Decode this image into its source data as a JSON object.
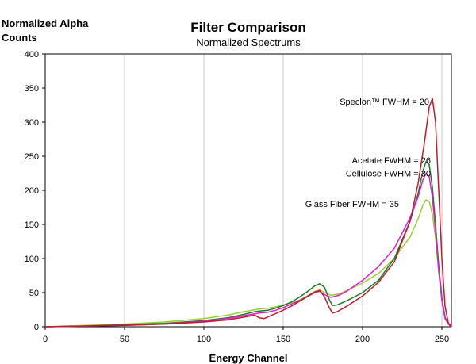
{
  "chart_data": {
    "type": "line",
    "title": "Filter Comparison",
    "subtitle": "Normalized Spectrums",
    "xlabel": "Energy Channel",
    "ylabel_line1": "Normalized Alpha",
    "ylabel_line2": "Counts",
    "xlim": [
      0,
      256
    ],
    "ylim": [
      0,
      400
    ],
    "x_ticks": [
      0,
      50,
      100,
      150,
      200,
      250
    ],
    "y_ticks": [
      0,
      50,
      100,
      150,
      200,
      250,
      300,
      350,
      400
    ],
    "grid": "vertical",
    "series": [
      {
        "color": "#9acd32",
        "points": [
          [
            0,
            0
          ],
          [
            25,
            2
          ],
          [
            50,
            4
          ],
          [
            75,
            7
          ],
          [
            100,
            12
          ],
          [
            115,
            17
          ],
          [
            125,
            22
          ],
          [
            135,
            26
          ],
          [
            140,
            27
          ],
          [
            145,
            29
          ],
          [
            150,
            32
          ],
          [
            155,
            35
          ],
          [
            160,
            39
          ],
          [
            165,
            45
          ],
          [
            170,
            52
          ],
          [
            173,
            54
          ],
          [
            176,
            50
          ],
          [
            180,
            46
          ],
          [
            185,
            48
          ],
          [
            190,
            53
          ],
          [
            200,
            64
          ],
          [
            210,
            78
          ],
          [
            220,
            100
          ],
          [
            230,
            132
          ],
          [
            235,
            158
          ],
          [
            238,
            178
          ],
          [
            240,
            186
          ],
          [
            242,
            184
          ],
          [
            244,
            165
          ],
          [
            246,
            130
          ],
          [
            248,
            80
          ],
          [
            250,
            40
          ],
          [
            252,
            14
          ],
          [
            254,
            4
          ],
          [
            256,
            0
          ]
        ]
      },
      {
        "color": "#1a7a2e",
        "points": [
          [
            0,
            0
          ],
          [
            25,
            1
          ],
          [
            50,
            3
          ],
          [
            75,
            5
          ],
          [
            100,
            9
          ],
          [
            115,
            13
          ],
          [
            125,
            18
          ],
          [
            132,
            22
          ],
          [
            135,
            23
          ],
          [
            140,
            24
          ],
          [
            145,
            27
          ],
          [
            150,
            31
          ],
          [
            155,
            36
          ],
          [
            160,
            43
          ],
          [
            165,
            51
          ],
          [
            170,
            60
          ],
          [
            173,
            63
          ],
          [
            176,
            58
          ],
          [
            179,
            40
          ],
          [
            181,
            31
          ],
          [
            184,
            32
          ],
          [
            190,
            38
          ],
          [
            200,
            50
          ],
          [
            210,
            68
          ],
          [
            220,
            100
          ],
          [
            230,
            155
          ],
          [
            235,
            195
          ],
          [
            238,
            228
          ],
          [
            240,
            242
          ],
          [
            242,
            238
          ],
          [
            244,
            205
          ],
          [
            246,
            150
          ],
          [
            248,
            90
          ],
          [
            250,
            42
          ],
          [
            252,
            14
          ],
          [
            254,
            4
          ],
          [
            256,
            0
          ]
        ]
      },
      {
        "color": "#e020d0",
        "points": [
          [
            0,
            0
          ],
          [
            25,
            1
          ],
          [
            50,
            2
          ],
          [
            75,
            4
          ],
          [
            100,
            8
          ],
          [
            115,
            12
          ],
          [
            125,
            16
          ],
          [
            132,
            19
          ],
          [
            135,
            20
          ],
          [
            140,
            21
          ],
          [
            145,
            24
          ],
          [
            150,
            28
          ],
          [
            155,
            33
          ],
          [
            160,
            38
          ],
          [
            165,
            44
          ],
          [
            170,
            50
          ],
          [
            173,
            52
          ],
          [
            176,
            47
          ],
          [
            180,
            43
          ],
          [
            185,
            46
          ],
          [
            190,
            52
          ],
          [
            200,
            68
          ],
          [
            210,
            88
          ],
          [
            220,
            115
          ],
          [
            230,
            160
          ],
          [
            235,
            190
          ],
          [
            238,
            215
          ],
          [
            240,
            225
          ],
          [
            242,
            220
          ],
          [
            244,
            190
          ],
          [
            246,
            140
          ],
          [
            248,
            82
          ],
          [
            250,
            38
          ],
          [
            252,
            12
          ],
          [
            254,
            4
          ],
          [
            256,
            0
          ]
        ]
      },
      {
        "color": "#c4182b",
        "points": [
          [
            0,
            0
          ],
          [
            25,
            1
          ],
          [
            50,
            2
          ],
          [
            75,
            4
          ],
          [
            100,
            7
          ],
          [
            115,
            10
          ],
          [
            125,
            14
          ],
          [
            132,
            17
          ],
          [
            135,
            13
          ],
          [
            138,
            12
          ],
          [
            142,
            16
          ],
          [
            148,
            22
          ],
          [
            155,
            30
          ],
          [
            160,
            37
          ],
          [
            165,
            44
          ],
          [
            170,
            51
          ],
          [
            173,
            53
          ],
          [
            176,
            44
          ],
          [
            179,
            28
          ],
          [
            181,
            20
          ],
          [
            184,
            22
          ],
          [
            190,
            30
          ],
          [
            200,
            45
          ],
          [
            210,
            65
          ],
          [
            220,
            95
          ],
          [
            230,
            155
          ],
          [
            235,
            210
          ],
          [
            239,
            270
          ],
          [
            242,
            322
          ],
          [
            244,
            335
          ],
          [
            246,
            300
          ],
          [
            248,
            200
          ],
          [
            250,
            100
          ],
          [
            252,
            30
          ],
          [
            254,
            6
          ],
          [
            256,
            0
          ]
        ]
      }
    ],
    "annotations": [
      {
        "text": "Speclon™ FWHM = 20",
        "x": 243,
        "y": 330
      },
      {
        "text": "Acetate FWHM = 26",
        "x": 244,
        "y": 244
      },
      {
        "text": "Cellulose FWHM = 30",
        "x": 244,
        "y": 225
      },
      {
        "text": "Glass Fiber FWHM = 35",
        "x": 224,
        "y": 180
      }
    ]
  }
}
